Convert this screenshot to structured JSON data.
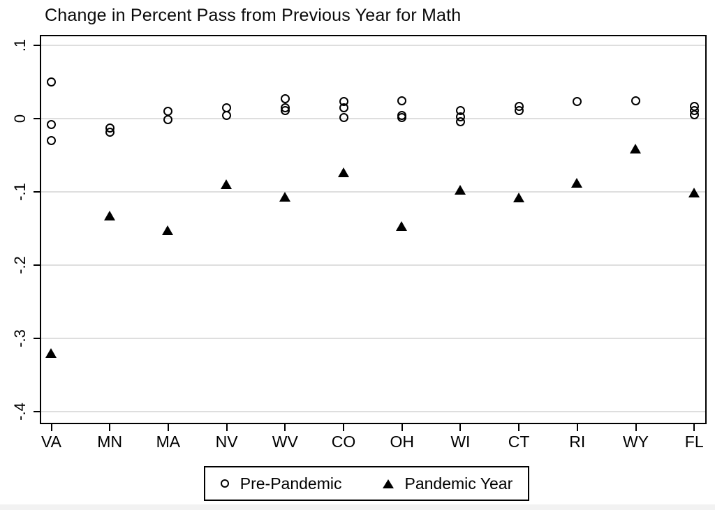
{
  "chart_data": {
    "type": "scatter",
    "title": "Change in Percent Pass from Previous Year for Math",
    "xlabel": "",
    "ylabel": "",
    "categories": [
      "VA",
      "MN",
      "MA",
      "NV",
      "WV",
      "CO",
      "OH",
      "WI",
      "CT",
      "RI",
      "WY",
      "FL"
    ],
    "series": [
      {
        "name": "Pre-Pandemic",
        "marker": "open-circle",
        "color": "#000000",
        "values_by_category": [
          [
            0.05,
            -0.008,
            -0.03
          ],
          [
            -0.013,
            -0.019
          ],
          [
            0.01,
            -0.001
          ],
          [
            0.015,
            0.004
          ],
          [
            0.027,
            0.015,
            0.011
          ],
          [
            0.023,
            0.015,
            0.001
          ],
          [
            0.024,
            0.004,
            0.001
          ],
          [
            0.011,
            0.002,
            -0.004
          ],
          [
            0.017,
            0.011
          ],
          [
            0.023
          ],
          [
            0.024
          ],
          [
            0.017,
            0.011,
            0.005
          ]
        ]
      },
      {
        "name": "Pandemic Year",
        "marker": "filled-triangle",
        "color": "#000000",
        "values_by_category": [
          [
            -0.32
          ],
          [
            -0.133
          ],
          [
            -0.153
          ],
          [
            -0.09
          ],
          [
            -0.107
          ],
          [
            -0.074
          ],
          [
            -0.147
          ],
          [
            -0.098
          ],
          [
            -0.108
          ],
          [
            -0.088
          ],
          [
            -0.041
          ],
          [
            -0.101
          ]
        ]
      }
    ],
    "yticks": [
      0.1,
      0,
      -0.1,
      -0.2,
      -0.3,
      -0.4
    ],
    "ytick_labels": [
      ".1",
      "0",
      "-.1",
      "-.2",
      "-.3",
      "-.4"
    ],
    "ylim": [
      -0.417,
      0.114
    ],
    "grid": "horizontal",
    "gridline_color": "#dedede",
    "legend_position": "bottom"
  }
}
